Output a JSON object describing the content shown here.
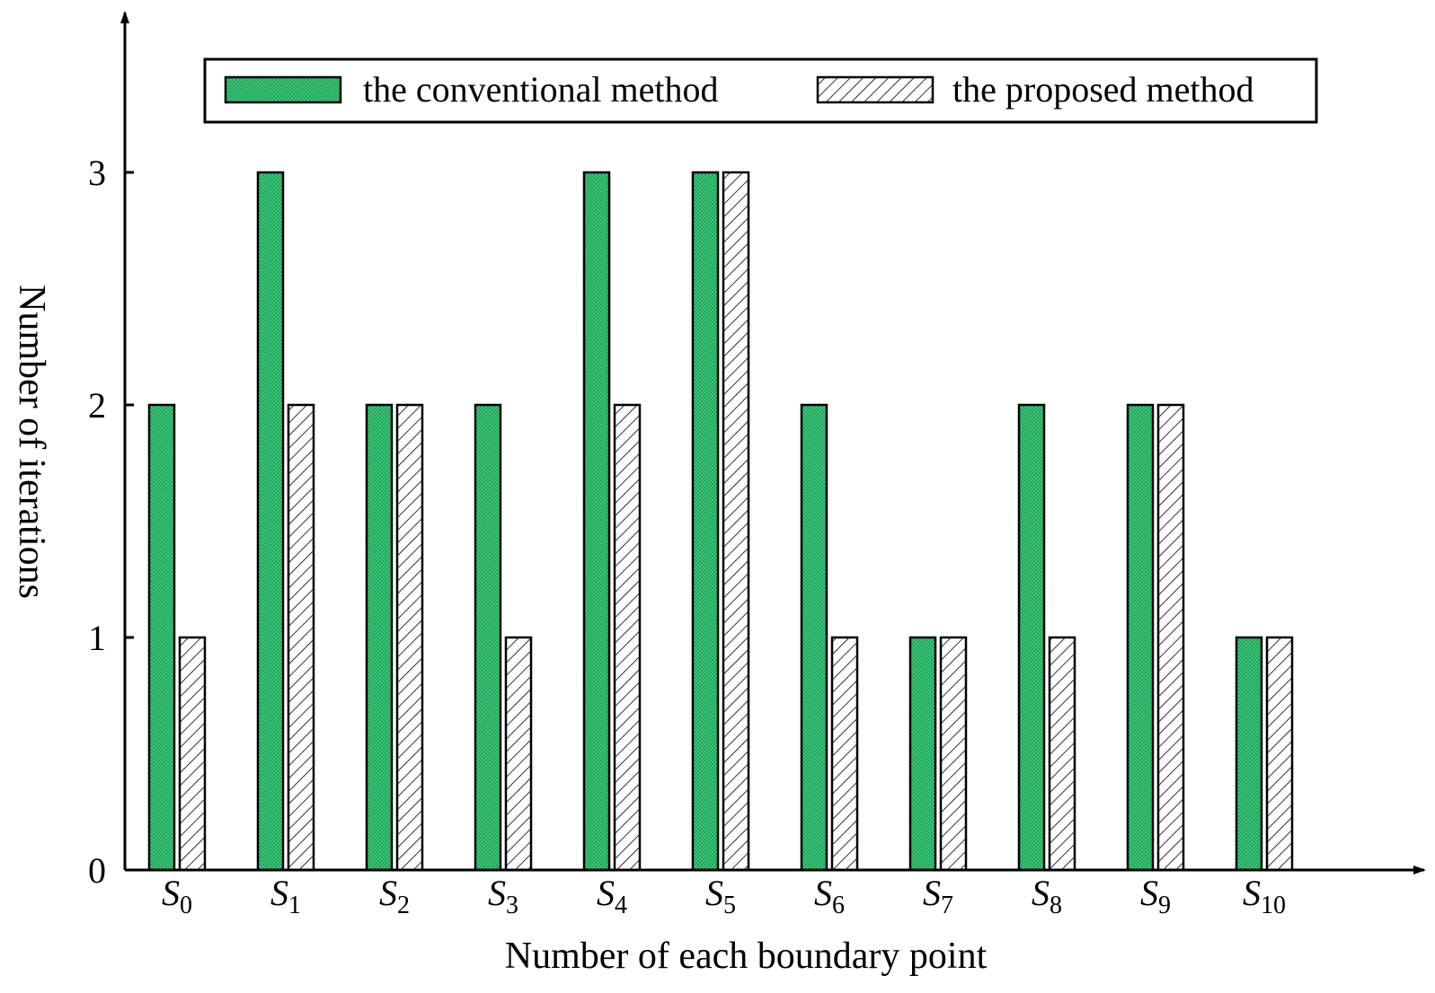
{
  "chart_data": {
    "type": "bar",
    "xlabel": "Number of each boundary point",
    "ylabel": "Number of iterations",
    "ylim": [
      0,
      3
    ],
    "yticks": [
      "0",
      "1",
      "2",
      "3"
    ],
    "categories": [
      {
        "main": "S",
        "sub": "0"
      },
      {
        "main": "S",
        "sub": "1"
      },
      {
        "main": "S",
        "sub": "2"
      },
      {
        "main": "S",
        "sub": "3"
      },
      {
        "main": "S",
        "sub": "4"
      },
      {
        "main": "S",
        "sub": "5"
      },
      {
        "main": "S",
        "sub": "6"
      },
      {
        "main": "S",
        "sub": "7"
      },
      {
        "main": "S",
        "sub": "8"
      },
      {
        "main": "S",
        "sub": "9"
      },
      {
        "main": "S",
        "sub": "10"
      }
    ],
    "series": [
      {
        "name": "the conventional method",
        "pattern": "dotted-green",
        "values": [
          2,
          3,
          2,
          2,
          3,
          3,
          2,
          1,
          2,
          2,
          1
        ]
      },
      {
        "name": "the proposed method",
        "pattern": "hatched",
        "values": [
          1,
          2,
          2,
          1,
          2,
          3,
          1,
          1,
          1,
          2,
          1
        ]
      }
    ],
    "legend_position": "top",
    "grid": false,
    "colors": {
      "green": "#1aa85a",
      "green_dot": "#7fe0a6",
      "hatch": "#000000",
      "axis": "#000000"
    }
  }
}
